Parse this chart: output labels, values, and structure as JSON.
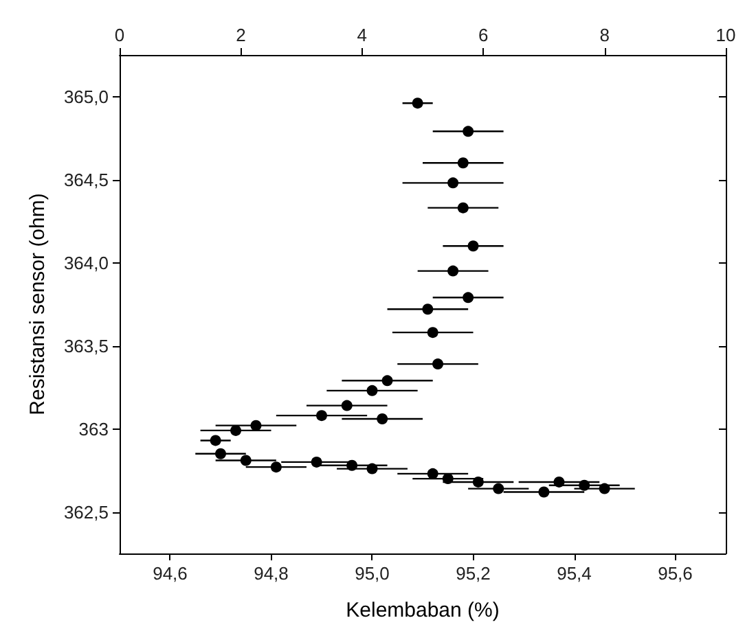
{
  "chart_data": {
    "type": "scatter",
    "xlabel": "Kelembaban (%)",
    "ylabel": "Resistansi sensor (ohm)",
    "x": [
      95.09,
      95.19,
      95.18,
      95.16,
      95.18,
      95.2,
      95.16,
      95.19,
      95.11,
      95.12,
      95.13,
      95.03,
      95.0,
      94.95,
      95.02,
      94.9,
      94.77,
      94.73,
      94.69,
      94.7,
      94.75,
      94.81,
      94.89,
      94.96,
      95.0,
      95.12,
      95.15,
      95.21,
      95.25,
      95.34,
      95.37,
      95.42,
      95.46
    ],
    "values": [
      364.96,
      364.79,
      364.6,
      364.48,
      364.33,
      364.1,
      363.95,
      363.79,
      363.72,
      363.58,
      363.39,
      363.29,
      363.23,
      363.14,
      363.06,
      363.08,
      363.02,
      362.99,
      362.93,
      362.85,
      362.81,
      362.77,
      362.8,
      362.78,
      362.76,
      362.73,
      362.7,
      362.68,
      362.64,
      362.62,
      362.68,
      362.66,
      362.64
    ],
    "xerrors": [
      0.03,
      0.07,
      0.08,
      0.1,
      0.07,
      0.06,
      0.07,
      0.07,
      0.08,
      0.08,
      0.08,
      0.09,
      0.09,
      0.08,
      0.08,
      0.09,
      0.08,
      0.07,
      0.03,
      0.05,
      0.06,
      0.06,
      0.07,
      0.07,
      0.07,
      0.07,
      0.07,
      0.07,
      0.06,
      0.08,
      0.08,
      0.07,
      0.06
    ],
    "color": "#000000",
    "marker": "circle",
    "xlim": [
      94.5,
      95.7
    ],
    "xticks": [
      {
        "value": 94.6,
        "label": "94,6"
      },
      {
        "value": 94.8,
        "label": "94,8"
      },
      {
        "value": 95.0,
        "label": "95,0"
      },
      {
        "value": 95.2,
        "label": "95,2"
      },
      {
        "value": 95.4,
        "label": "95,4"
      },
      {
        "value": 95.6,
        "label": "95,6"
      }
    ],
    "ylim": [
      362.25,
      365.25
    ],
    "yticks": [
      {
        "value": 362.5,
        "label": "362,5"
      },
      {
        "value": 363.0,
        "label": "363"
      },
      {
        "value": 363.5,
        "label": "363,5"
      },
      {
        "value": 364.0,
        "label": "364,0"
      },
      {
        "value": 364.5,
        "label": "364,5"
      },
      {
        "value": 365.0,
        "label": "365,0"
      }
    ],
    "x2lim": [
      0,
      10
    ],
    "x2ticks": [
      0,
      2,
      4,
      6,
      8,
      10
    ],
    "grid": false
  }
}
